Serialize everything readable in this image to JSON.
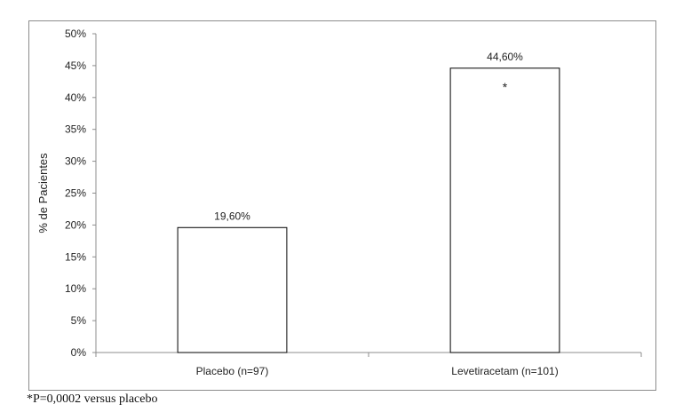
{
  "chart_data": {
    "type": "bar",
    "title": "",
    "xlabel": "",
    "ylabel": "% de Pacientes",
    "categories": [
      "Placebo (n=97)",
      "Levetiracetam (n=101)"
    ],
    "values": [
      19.6,
      44.6
    ],
    "data_labels": [
      "19,60%",
      "44,60%"
    ],
    "annotations": [
      "",
      "*"
    ],
    "ylim": [
      0,
      50
    ],
    "yticks": [
      "0%",
      "5%",
      "10%",
      "15%",
      "20%",
      "25%",
      "30%",
      "35%",
      "40%",
      "45%",
      "50%"
    ],
    "grid": false,
    "legend": "none",
    "bar_fill": "#ffffff",
    "bar_stroke": "#000000"
  },
  "footnote": "*P=0,0002 versus placebo"
}
